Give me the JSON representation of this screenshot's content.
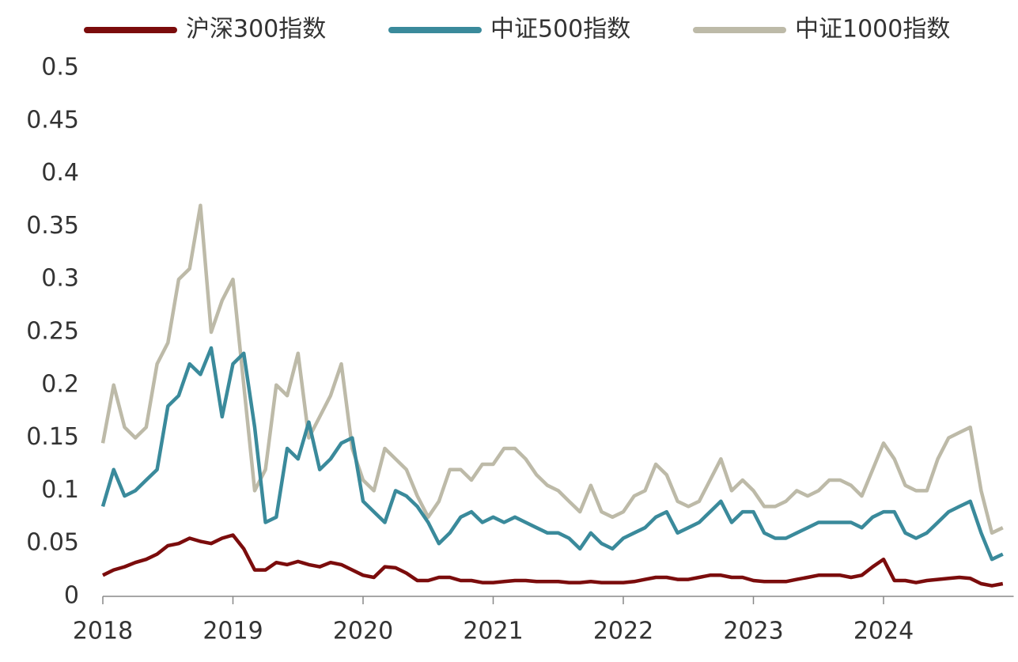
{
  "chart_data": {
    "type": "line",
    "x": [
      2018,
      2018.083,
      2018.167,
      2018.25,
      2018.333,
      2018.417,
      2018.5,
      2018.583,
      2018.667,
      2018.75,
      2018.833,
      2018.917,
      2019,
      2019.083,
      2019.167,
      2019.25,
      2019.333,
      2019.417,
      2019.5,
      2019.583,
      2019.667,
      2019.75,
      2019.833,
      2019.917,
      2020,
      2020.083,
      2020.167,
      2020.25,
      2020.333,
      2020.417,
      2020.5,
      2020.583,
      2020.667,
      2020.75,
      2020.833,
      2020.917,
      2021,
      2021.083,
      2021.167,
      2021.25,
      2021.333,
      2021.417,
      2021.5,
      2021.583,
      2021.667,
      2021.75,
      2021.833,
      2021.917,
      2022,
      2022.083,
      2022.167,
      2022.25,
      2022.333,
      2022.417,
      2022.5,
      2022.583,
      2022.667,
      2022.75,
      2022.833,
      2022.917,
      2023,
      2023.083,
      2023.167,
      2023.25,
      2023.333,
      2023.417,
      2023.5,
      2023.583,
      2023.667,
      2023.75,
      2023.833,
      2023.917,
      2024,
      2024.083,
      2024.167,
      2024.25,
      2024.333,
      2024.417,
      2024.5,
      2024.583,
      2024.667,
      2024.75,
      2024.833,
      2024.917
    ],
    "series": [
      {
        "name": "沪深300指数",
        "color": "#7b0c0c",
        "values": [
          0.02,
          0.025,
          0.028,
          0.032,
          0.035,
          0.04,
          0.048,
          0.05,
          0.055,
          0.052,
          0.05,
          0.055,
          0.058,
          0.045,
          0.025,
          0.025,
          0.032,
          0.03,
          0.033,
          0.03,
          0.028,
          0.032,
          0.03,
          0.025,
          0.02,
          0.018,
          0.028,
          0.027,
          0.022,
          0.015,
          0.015,
          0.018,
          0.018,
          0.015,
          0.015,
          0.013,
          0.013,
          0.014,
          0.015,
          0.015,
          0.014,
          0.014,
          0.014,
          0.013,
          0.013,
          0.014,
          0.013,
          0.013,
          0.013,
          0.014,
          0.016,
          0.018,
          0.018,
          0.016,
          0.016,
          0.018,
          0.02,
          0.02,
          0.018,
          0.018,
          0.015,
          0.014,
          0.014,
          0.014,
          0.016,
          0.018,
          0.02,
          0.02,
          0.02,
          0.018,
          0.02,
          0.028,
          0.035,
          0.015,
          0.015,
          0.013,
          0.015,
          0.016,
          0.017,
          0.018,
          0.017,
          0.012,
          0.01,
          0.012
        ]
      },
      {
        "name": "中证500指数",
        "color": "#3a8a9b",
        "values": [
          0.085,
          0.12,
          0.095,
          0.1,
          0.11,
          0.12,
          0.18,
          0.19,
          0.22,
          0.21,
          0.235,
          0.17,
          0.22,
          0.23,
          0.16,
          0.07,
          0.075,
          0.14,
          0.13,
          0.165,
          0.12,
          0.13,
          0.145,
          0.15,
          0.09,
          0.08,
          0.07,
          0.1,
          0.095,
          0.085,
          0.07,
          0.05,
          0.06,
          0.075,
          0.08,
          0.07,
          0.075,
          0.07,
          0.075,
          0.07,
          0.065,
          0.06,
          0.06,
          0.055,
          0.045,
          0.06,
          0.05,
          0.045,
          0.055,
          0.06,
          0.065,
          0.075,
          0.08,
          0.06,
          0.065,
          0.07,
          0.08,
          0.09,
          0.07,
          0.08,
          0.08,
          0.06,
          0.055,
          0.055,
          0.06,
          0.065,
          0.07,
          0.07,
          0.07,
          0.07,
          0.065,
          0.075,
          0.08,
          0.08,
          0.06,
          0.055,
          0.06,
          0.07,
          0.08,
          0.085,
          0.09,
          0.06,
          0.035,
          0.04
        ]
      },
      {
        "name": "中证1000指数",
        "color": "#bdbaa8",
        "values": [
          0.145,
          0.2,
          0.16,
          0.15,
          0.16,
          0.22,
          0.24,
          0.3,
          0.31,
          0.37,
          0.25,
          0.28,
          0.3,
          0.2,
          0.1,
          0.12,
          0.2,
          0.19,
          0.23,
          0.15,
          0.17,
          0.19,
          0.22,
          0.14,
          0.11,
          0.1,
          0.14,
          0.13,
          0.12,
          0.095,
          0.075,
          0.09,
          0.12,
          0.12,
          0.11,
          0.125,
          0.125,
          0.14,
          0.14,
          0.13,
          0.115,
          0.105,
          0.1,
          0.09,
          0.08,
          0.105,
          0.08,
          0.075,
          0.08,
          0.095,
          0.1,
          0.125,
          0.115,
          0.09,
          0.085,
          0.09,
          0.11,
          0.13,
          0.1,
          0.11,
          0.1,
          0.085,
          0.085,
          0.09,
          0.1,
          0.095,
          0.1,
          0.11,
          0.11,
          0.105,
          0.095,
          0.12,
          0.145,
          0.13,
          0.105,
          0.1,
          0.1,
          0.13,
          0.15,
          0.155,
          0.16,
          0.1,
          0.06,
          0.065
        ]
      }
    ],
    "xlim": [
      2018,
      2025
    ],
    "xticks": [
      2018,
      2019,
      2020,
      2021,
      2022,
      2023,
      2024
    ],
    "ylim": [
      0,
      0.5
    ],
    "yticks": [
      0,
      0.05,
      0.1,
      0.15,
      0.2,
      0.25,
      0.3,
      0.35,
      0.4,
      0.45,
      0.5
    ],
    "grid": false,
    "legend": "top"
  }
}
